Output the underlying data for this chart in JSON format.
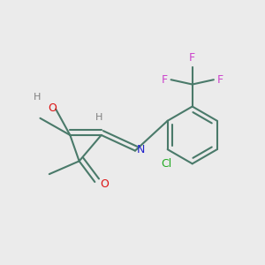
{
  "background_color": "#ebebeb",
  "bond_color": "#4a7a6a",
  "bond_width": 1.5,
  "figsize": [
    3.0,
    3.0
  ],
  "dpi": 100,
  "colors": {
    "bond": "#4a7a6a",
    "O": "#dd1111",
    "N": "#2222cc",
    "Cl": "#22aa22",
    "F": "#cc44cc",
    "H": "#808080"
  }
}
